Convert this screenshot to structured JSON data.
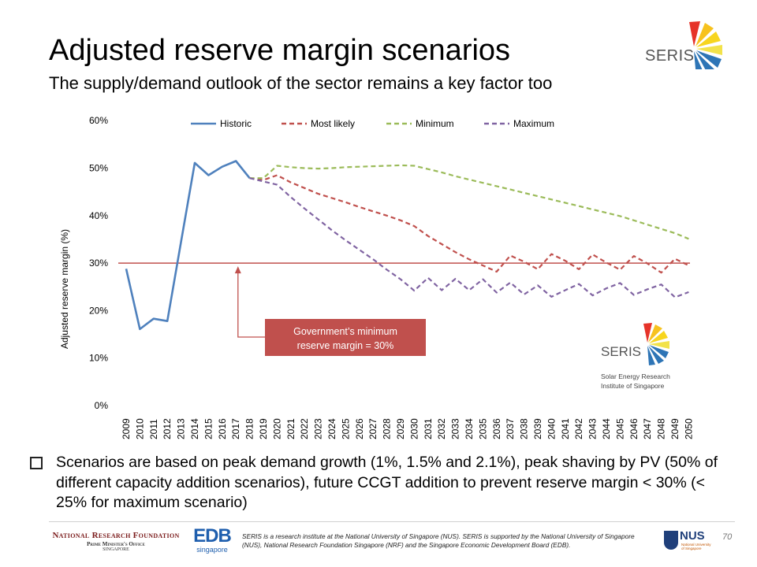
{
  "slide": {
    "title": "Adjusted reserve margin scenarios",
    "subtitle": "The supply/demand outlook of the sector remains a key factor too",
    "page_number": "70"
  },
  "logos": {
    "seris_top": "SERIS",
    "seris_box": "SERIS",
    "seris_tagline_1": "Solar Energy Research",
    "seris_tagline_2": "Institute of Singapore",
    "nrf_line1": "National Research Foundation",
    "nrf_line2": "Prime Minister's Office",
    "nrf_line3": "Singapore",
    "edb_main": "EDB",
    "edb_sub": "singapore",
    "nus_main": "NUS",
    "nus_sub": "National University of Singapore"
  },
  "bullet": {
    "text": "Scenarios are based on peak demand growth (1%, 1.5% and 2.1%), peak shaving by PV (50% of different capacity addition scenarios), future CCGT addition to prevent reserve margin < 30% (< 25% for maximum scenario)"
  },
  "footer": {
    "disclaimer": "SERIS is a research institute at the National University of Singapore (NUS). SERIS is supported by the National University of Singapore (NUS), National Research Foundation Singapore (NRF) and the Singapore Economic Development Board (EDB)."
  },
  "colors": {
    "historic": "#4F81BD",
    "most_likely": "#C0504D",
    "minimum": "#9BBB59",
    "maximum": "#8064A2",
    "threshold": "#C0504D",
    "annotation_bg": "#C0504D",
    "annotation_text": "#FFFFFF"
  },
  "chart_data": {
    "type": "line",
    "title": "",
    "xlabel": "",
    "ylabel": "Adjusted reserve margin (%)",
    "ylim": [
      0,
      60
    ],
    "yticks": [
      "0%",
      "10%",
      "20%",
      "30%",
      "40%",
      "50%",
      "60%"
    ],
    "y_tick_values": [
      0,
      10,
      20,
      30,
      40,
      50,
      60
    ],
    "grid": false,
    "legend_position": "top",
    "x": [
      2009,
      2010,
      2011,
      2012,
      2013,
      2014,
      2015,
      2016,
      2017,
      2018,
      2019,
      2020,
      2021,
      2022,
      2023,
      2024,
      2025,
      2026,
      2027,
      2028,
      2029,
      2030,
      2031,
      2032,
      2033,
      2034,
      2035,
      2036,
      2037,
      2038,
      2039,
      2040,
      2041,
      2042,
      2043,
      2044,
      2045,
      2046,
      2047,
      2048,
      2049,
      2050
    ],
    "series": [
      {
        "name": "Historic",
        "style": "solid",
        "values": [
          28.8,
          16.1,
          18.3,
          17.8,
          34.5,
          51.1,
          48.5,
          50.3,
          51.5,
          47.9,
          null,
          null,
          null,
          null,
          null,
          null,
          null,
          null,
          null,
          null,
          null,
          null,
          null,
          null,
          null,
          null,
          null,
          null,
          null,
          null,
          null,
          null,
          null,
          null,
          null,
          null,
          null,
          null,
          null,
          null,
          null,
          null
        ]
      },
      {
        "name": "Most likely",
        "style": "dashed",
        "values": [
          null,
          null,
          null,
          null,
          null,
          null,
          null,
          null,
          null,
          47.9,
          47.5,
          48.5,
          47.0,
          45.8,
          44.6,
          43.7,
          42.8,
          41.8,
          40.9,
          40.0,
          39.0,
          37.8,
          35.7,
          34.0,
          32.3,
          30.8,
          29.5,
          28.2,
          31.6,
          30.3,
          28.7,
          31.9,
          30.5,
          28.7,
          31.8,
          30.1,
          28.6,
          31.5,
          29.9,
          28.0,
          30.9,
          29.5
        ]
      },
      {
        "name": "Minimum",
        "style": "dashed",
        "values": [
          null,
          null,
          null,
          null,
          null,
          null,
          null,
          null,
          null,
          47.9,
          47.9,
          50.5,
          50.2,
          50.0,
          49.9,
          50.0,
          50.2,
          50.3,
          50.4,
          50.5,
          50.6,
          50.5,
          49.8,
          49.1,
          48.3,
          47.6,
          46.9,
          46.2,
          45.5,
          44.8,
          44.1,
          43.4,
          42.7,
          42.0,
          41.3,
          40.6,
          39.9,
          39.0,
          38.1,
          37.2,
          36.3,
          35.1
        ]
      },
      {
        "name": "Maximum",
        "style": "dashed",
        "values": [
          null,
          null,
          null,
          null,
          null,
          null,
          null,
          null,
          null,
          47.9,
          47.2,
          46.5,
          43.9,
          41.5,
          39.2,
          36.9,
          34.8,
          32.8,
          30.8,
          28.6,
          26.6,
          24.2,
          26.9,
          24.3,
          26.7,
          24.3,
          26.6,
          23.8,
          25.9,
          23.4,
          25.3,
          22.9,
          24.3,
          25.6,
          23.2,
          24.7,
          25.8,
          23.3,
          24.5,
          25.5,
          22.8,
          23.9
        ]
      }
    ],
    "threshold": {
      "value": 30,
      "label": ""
    },
    "annotation": {
      "text_line1": "Government’s minimum",
      "text_line2": "reserve margin = 30%",
      "arrow_target_x": 2016,
      "arrow_target_y": 30
    }
  }
}
